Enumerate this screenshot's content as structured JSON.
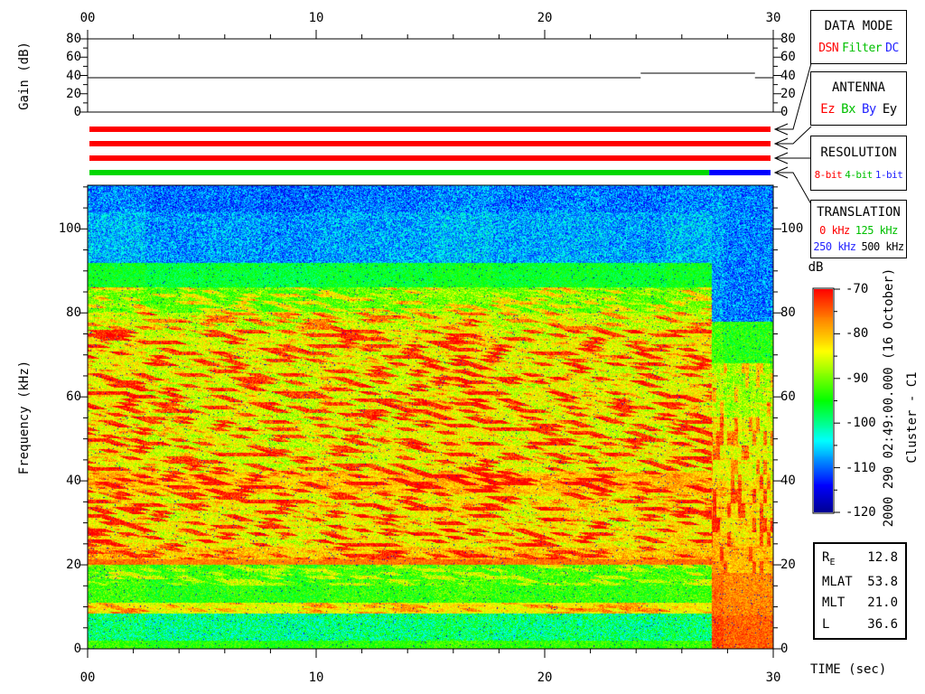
{
  "side_text": {
    "timestamp": "2000 290 02:49:00.000 (16 October)",
    "spacecraft": "Cluster - C1"
  },
  "legend_boxes": [
    {
      "title": "DATA MODE",
      "item_font": 13,
      "gap": 4,
      "items": [
        {
          "label": "DSN",
          "color": "#ff0000",
          "row": 0
        },
        {
          "label": "Filter",
          "color": "#00c000",
          "row": 0
        },
        {
          "label": "DC",
          "color": "#2424ff",
          "row": 0
        }
      ]
    },
    {
      "title": "ANTENNA",
      "item_font": 14,
      "gap": 7,
      "items": [
        {
          "label": "Ez",
          "color": "#ff0000",
          "row": 0
        },
        {
          "label": "Bx",
          "color": "#00c000",
          "row": 0
        },
        {
          "label": "By",
          "color": "#2424ff",
          "row": 0
        },
        {
          "label": "Ey",
          "color": "#000000",
          "row": 0
        }
      ]
    },
    {
      "title": "RESOLUTION",
      "item_font": 11,
      "gap": 3,
      "items": [
        {
          "label": "8-bit",
          "color": "#ff0000",
          "row": 0
        },
        {
          "label": "4-bit",
          "color": "#00c000",
          "row": 0
        },
        {
          "label": "1-bit",
          "color": "#2424ff",
          "row": 0
        }
      ]
    },
    {
      "title": "TRANSLATION",
      "item_font": 12,
      "gap": 6,
      "items": [
        {
          "label": "0 kHz",
          "color": "#ff0000",
          "row": 0
        },
        {
          "label": "125 kHz",
          "color": "#00c000",
          "row": 0
        },
        {
          "label": "250 kHz",
          "color": "#2424ff",
          "row": 1
        },
        {
          "label": "500 kHz",
          "color": "#000000",
          "row": 1
        }
      ]
    }
  ],
  "status_bars": [
    {
      "name": "data-mode-bar",
      "segments": [
        {
          "t0": 0,
          "t1": 30,
          "color": "#ff0000",
          "value": "DSN"
        }
      ]
    },
    {
      "name": "antenna-bar",
      "segments": [
        {
          "t0": 0,
          "t1": 30,
          "color": "#ff0000",
          "value": "Ez"
        }
      ]
    },
    {
      "name": "resolution-bar",
      "segments": [
        {
          "t0": 0,
          "t1": 30,
          "color": "#ff0000",
          "value": "8-bit"
        }
      ]
    },
    {
      "name": "translation-bar",
      "segments": [
        {
          "t0": 0,
          "t1": 27.3,
          "color": "#00d800",
          "value": "125 kHz"
        },
        {
          "t0": 27.3,
          "t1": 30,
          "color": "#0000ff",
          "value": "250 kHz"
        }
      ]
    }
  ],
  "ephemeris": {
    "rows": [
      {
        "label": "R",
        "sub": "E",
        "value": "12.8"
      },
      {
        "label": "MLAT",
        "sub": "",
        "value": "53.8"
      },
      {
        "label": "MLT",
        "sub": "",
        "value": "21.0"
      },
      {
        "label": "L",
        "sub": "",
        "value": "36.6"
      }
    ]
  },
  "chart_data": [
    {
      "type": "line",
      "ylabel": "Gain (dB)",
      "xlim": [
        0,
        30
      ],
      "ylim": [
        0,
        80
      ],
      "xtick_values": [
        0,
        10,
        20,
        30
      ],
      "xtick_labels": [
        "00",
        "10",
        "20",
        "30"
      ],
      "yticks": [
        0,
        20,
        40,
        60,
        80
      ],
      "minor_x_step": 2,
      "minor_y_step": 10,
      "series": [
        {
          "name": "gain",
          "segments": [
            {
              "t0": 0,
              "t1": 24.2,
              "db": 37.5
            },
            {
              "t0": 24.2,
              "t1": 29.2,
              "db": 42.5
            },
            {
              "t0": 29.2,
              "t1": 30,
              "db": 37.5
            }
          ]
        }
      ]
    },
    {
      "type": "heatmap",
      "xlabel": "TIME (sec)",
      "ylabel": "Frequency (kHz)",
      "xlim": [
        0,
        30
      ],
      "ylim": [
        0,
        110.4
      ],
      "xtick_values": [
        0,
        10,
        20,
        30
      ],
      "xtick_labels": [
        "00",
        "10",
        "20",
        "30"
      ],
      "yticks": [
        0,
        20,
        40,
        60,
        80,
        100
      ],
      "minor_x_step": 2,
      "minor_y_step": 5,
      "colorbar": {
        "label": "dB",
        "min": -120,
        "max": -70,
        "ticks": [
          -70,
          -80,
          -90,
          -100,
          -110,
          -120
        ],
        "minor_step": 5
      },
      "colormap_stops": [
        {
          "u": 0.0,
          "c": "#000090"
        },
        {
          "u": 0.12,
          "c": "#0000ff"
        },
        {
          "u": 0.32,
          "c": "#00ffff"
        },
        {
          "u": 0.5,
          "c": "#00ff00"
        },
        {
          "u": 0.72,
          "c": "#ffff00"
        },
        {
          "u": 0.86,
          "c": "#ff8800"
        },
        {
          "u": 1.0,
          "c": "#ff0000"
        }
      ],
      "segment_boundary_t": 27.3,
      "bands_main": [
        {
          "f": [
            104,
            110.4
          ],
          "db": -109,
          "noise": 6
        },
        {
          "f": [
            92,
            104
          ],
          "db": -107,
          "noise": 6
        },
        {
          "f": [
            86,
            92
          ],
          "db": -96,
          "noise": 4
        },
        {
          "f": [
            80,
            86
          ],
          "db": -90,
          "noise": 5,
          "patch": 4
        },
        {
          "f": [
            76,
            80
          ],
          "db": -86,
          "noise": 5,
          "patch": 5
        },
        {
          "f": [
            42,
            76
          ],
          "db": -84,
          "noise": 5,
          "patch": 6
        },
        {
          "f": [
            37,
            42
          ],
          "db": -80,
          "noise": 4,
          "patch": 5
        },
        {
          "f": [
            24,
            37
          ],
          "db": -83,
          "noise": 5,
          "patch": 6
        },
        {
          "f": [
            21.3,
            24
          ],
          "db": -80,
          "noise": 5,
          "patch": 4
        },
        {
          "f": [
            20,
            21.3
          ],
          "db": -76,
          "noise": 3
        },
        {
          "f": [
            15,
            20
          ],
          "db": -92,
          "noise": 5,
          "patch": 3
        },
        {
          "f": [
            11,
            15
          ],
          "db": -93,
          "noise": 5
        },
        {
          "f": [
            8.5,
            11
          ],
          "db": -84,
          "noise": 4,
          "patch": 3
        },
        {
          "f": [
            2,
            8.5
          ],
          "db": -99,
          "noise": 7
        },
        {
          "f": [
            0,
            2
          ],
          "db": -93,
          "noise": 4
        }
      ],
      "bands_right": [
        {
          "f": [
            78,
            110.4
          ],
          "db": -108,
          "noise": 6
        },
        {
          "f": [
            68,
            78
          ],
          "db": -93,
          "noise": 5
        },
        {
          "f": [
            55,
            68
          ],
          "db": -87,
          "noise": 5,
          "patch": 4
        },
        {
          "f": [
            40,
            55
          ],
          "db": -84,
          "noise": 5,
          "patch": 4
        },
        {
          "f": [
            25,
            40
          ],
          "db": -81,
          "noise": 5,
          "patch": 4
        },
        {
          "f": [
            18,
            25
          ],
          "db": -79,
          "noise": 4,
          "patch": 3
        },
        {
          "f": [
            8,
            18
          ],
          "db": -76,
          "noise": 4
        },
        {
          "f": [
            0,
            8
          ],
          "db": -74,
          "noise": 4
        }
      ]
    }
  ]
}
